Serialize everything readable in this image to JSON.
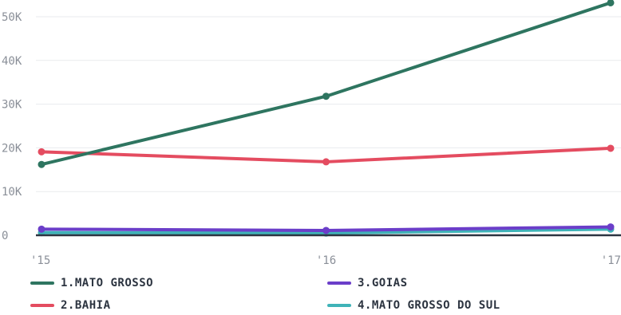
{
  "chart_data": {
    "type": "line",
    "x": [
      "'15",
      "'16",
      "'17"
    ],
    "ylim": [
      0,
      55000
    ],
    "yticks": [
      0,
      10000,
      20000,
      30000,
      40000,
      50000
    ],
    "ytick_labels": [
      "0",
      "10K",
      "20K",
      "30K",
      "40K",
      "50K"
    ],
    "grid": true,
    "legend_position": "bottom",
    "series": [
      {
        "name": "1.MATO GROSSO",
        "color": "#2e7560",
        "values": [
          16200,
          31800,
          53200
        ]
      },
      {
        "name": "2.BAHIA",
        "color": "#e44c60",
        "values": [
          19100,
          16800,
          19900
        ]
      },
      {
        "name": "3.GOIAS",
        "color": "#6b3ec9",
        "values": [
          1400,
          1100,
          1900
        ]
      },
      {
        "name": "4.MATO GROSSO DO SUL",
        "color": "#3fb3b8",
        "values": [
          600,
          500,
          1400
        ]
      }
    ]
  }
}
